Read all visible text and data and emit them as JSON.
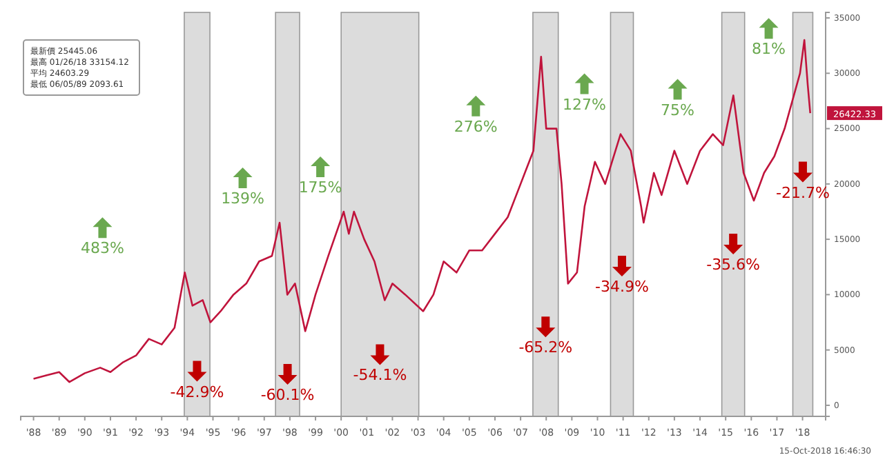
{
  "chart_data": {
    "type": "line",
    "x": [
      1988.0,
      1988.5,
      1989.0,
      1989.4,
      1990.0,
      1990.6,
      1991.0,
      1991.5,
      1992.0,
      1992.5,
      1993.0,
      1993.5,
      1993.9,
      1994.2,
      1994.6,
      1994.9,
      1995.3,
      1995.8,
      1996.3,
      1996.8,
      1997.3,
      1997.6,
      1997.9,
      1998.2,
      1998.6,
      1999.0,
      1999.5,
      2000.1,
      2000.3,
      2000.5,
      2000.9,
      2001.3,
      2001.7,
      2002.0,
      2002.5,
      2003.2,
      2003.6,
      2004.0,
      2004.5,
      2005.0,
      2005.5,
      2006.0,
      2006.5,
      2007.0,
      2007.5,
      2007.8,
      2008.0,
      2008.4,
      2008.6,
      2008.85,
      2009.2,
      2009.5,
      2009.9,
      2010.3,
      2010.9,
      2011.3,
      2011.7,
      2011.8,
      2012.2,
      2012.5,
      2013.0,
      2013.5,
      2014.0,
      2014.5,
      2014.9,
      2015.3,
      2015.7,
      2016.1,
      2016.5,
      2016.9,
      2017.3,
      2017.9,
      2018.07,
      2018.2,
      2018.3
    ],
    "series": [
      {
        "color": "#c0143c",
        "values": [
          2400,
          2700,
          3000,
          2100,
          2900,
          3400,
          3000,
          3900,
          4500,
          6000,
          5500,
          7000,
          12000,
          9000,
          9500,
          7500,
          8500,
          10000,
          11000,
          13000,
          13500,
          16500,
          10000,
          11000,
          6700,
          10000,
          13500,
          17500,
          15500,
          17500,
          15000,
          13000,
          9500,
          11000,
          10000,
          8500,
          10000,
          13000,
          12000,
          14000,
          14000,
          15500,
          17000,
          20000,
          23000,
          31500,
          25000,
          25000,
          20000,
          11000,
          12000,
          18000,
          22000,
          20000,
          24500,
          23000,
          18000,
          16500,
          21000,
          19000,
          23000,
          20000,
          23000,
          24500,
          23500,
          28000,
          21000,
          18500,
          21000,
          22500,
          25000,
          30000,
          33000,
          29000,
          26400
        ]
      }
    ],
    "xlim": [
      1987.5,
      2018.9
    ],
    "xticks": [
      {
        "value": 1988,
        "label": "'88"
      },
      {
        "value": 1989,
        "label": "'89"
      },
      {
        "value": 1990,
        "label": "'90"
      },
      {
        "value": 1991,
        "label": "'91"
      },
      {
        "value": 1992,
        "label": "'92"
      },
      {
        "value": 1993,
        "label": "'93"
      },
      {
        "value": 1994,
        "label": "'94"
      },
      {
        "value": 1995,
        "label": "'95"
      },
      {
        "value": 1996,
        "label": "'96"
      },
      {
        "value": 1997,
        "label": "'97"
      },
      {
        "value": 1998,
        "label": "'98"
      },
      {
        "value": 1999,
        "label": "'99"
      },
      {
        "value": 2000,
        "label": "'00"
      },
      {
        "value": 2001,
        "label": "'01"
      },
      {
        "value": 2002,
        "label": "'02"
      },
      {
        "value": 2003,
        "label": "'03"
      },
      {
        "value": 2004,
        "label": "'04"
      },
      {
        "value": 2005,
        "label": "'05"
      },
      {
        "value": 2006,
        "label": "'06"
      },
      {
        "value": 2007,
        "label": "'07"
      },
      {
        "value": 2008,
        "label": "'08"
      },
      {
        "value": 2009,
        "label": "'09"
      },
      {
        "value": 2010,
        "label": "'10"
      },
      {
        "value": 2011,
        "label": "'11"
      },
      {
        "value": 2012,
        "label": "'12"
      },
      {
        "value": 2013,
        "label": "'13"
      },
      {
        "value": 2014,
        "label": "'14"
      },
      {
        "value": 2015,
        "label": "'15"
      },
      {
        "value": 2016,
        "label": "'16"
      },
      {
        "value": 2017,
        "label": "'17"
      },
      {
        "value": 2018,
        "label": "'18"
      }
    ],
    "ylim": [
      -1000,
      35500
    ],
    "yticks": [
      0,
      5000,
      10000,
      15000,
      20000,
      25000,
      30000,
      35000
    ],
    "bands": [
      {
        "axis": "x",
        "from": 1993.88,
        "to": 1994.88,
        "color": "#dcdcdc",
        "label": "-42.9%"
      },
      {
        "axis": "x",
        "from": 1997.44,
        "to": 1998.38,
        "color": "#dcdcdc",
        "label": "-60.1%"
      },
      {
        "axis": "x",
        "from": 2000.0,
        "to": 2003.03,
        "color": "#dcdcdc",
        "label": "-54.1%"
      },
      {
        "axis": "x",
        "from": 2007.48,
        "to": 2008.47,
        "color": "#dcdcdc",
        "label": "-65.2%"
      },
      {
        "axis": "x",
        "from": 2010.51,
        "to": 2011.4,
        "color": "#dcdcdc",
        "label": "-34.9%"
      },
      {
        "axis": "x",
        "from": 2014.85,
        "to": 2015.74,
        "color": "#dcdcdc",
        "label": "-35.6%"
      },
      {
        "axis": "x",
        "from": 2017.62,
        "to": 2018.4,
        "color": "#dcdcdc",
        "label": "-21.7%"
      }
    ],
    "annotations": [
      "483%",
      "139%",
      "175%",
      "276%",
      "127%",
      "75%",
      "81%",
      "26422.33",
      "最新價  25445.06",
      "最高  01/26/18  33154.12",
      "平均  24603.29",
      "最低  06/05/89  2093.61",
      "15-Oct-2018 16:46:30"
    ]
  }
}
